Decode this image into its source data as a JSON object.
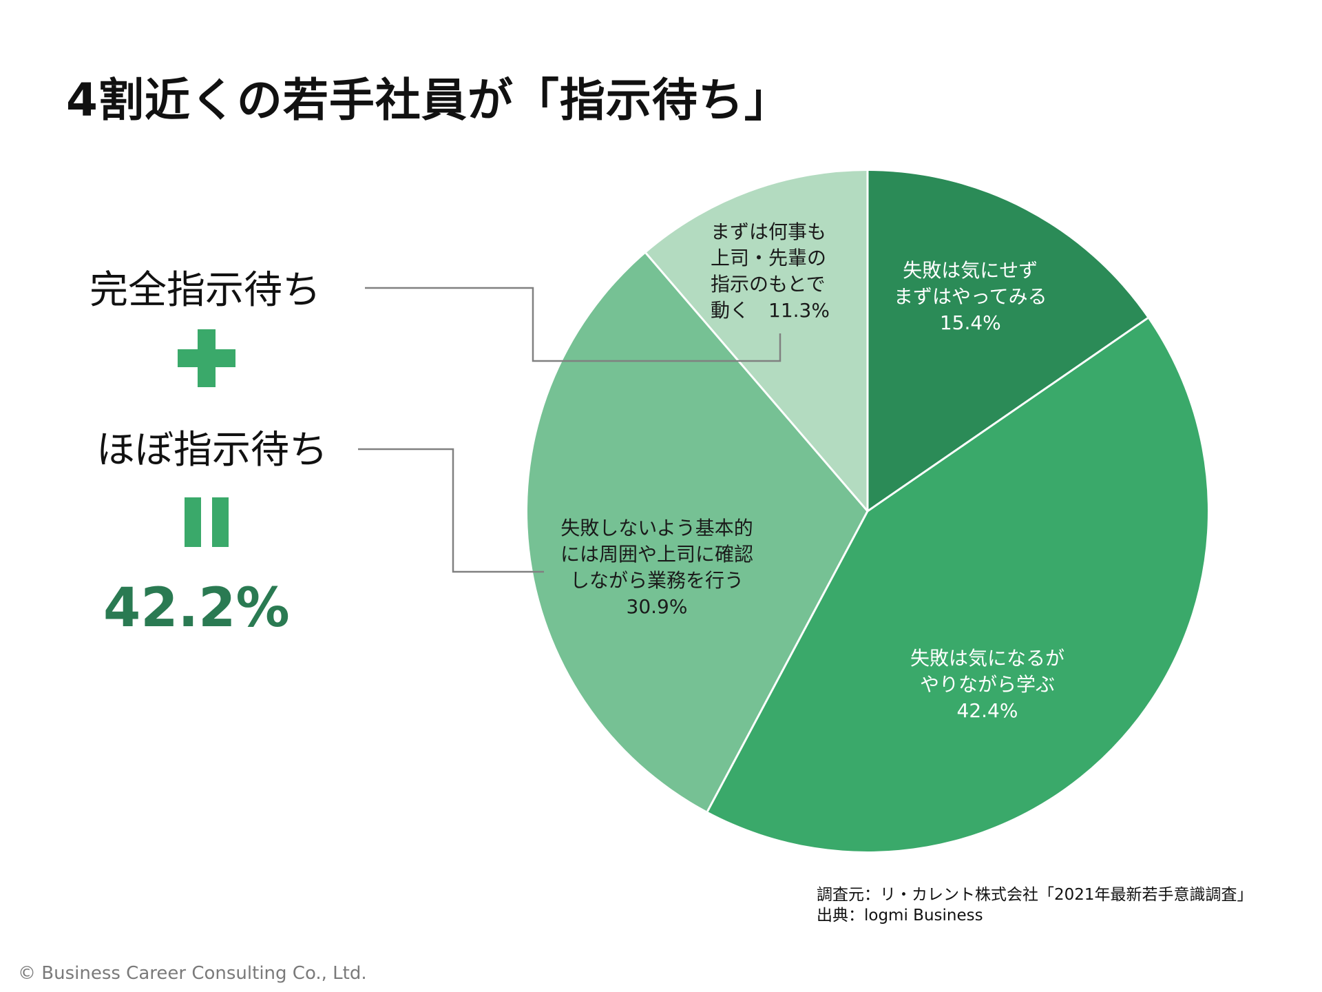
{
  "title": "4割近くの若手社員が「指示待ち」",
  "left_panel": {
    "label_full": "完全指示待ち",
    "label_almost": "ほぼ指示待ち",
    "plus_icon": "plus-icon",
    "equals_icon": "equals-icon",
    "total_percent": "42.2%"
  },
  "colors": {
    "accent": "#3aa96a",
    "total_text": "#2a7a52",
    "leader_line": "#808080"
  },
  "chart_data": {
    "type": "pie",
    "title": "",
    "slices": [
      {
        "lines": [
          "失敗は気にせず",
          "まずはやってみる",
          "15.4%"
        ],
        "value": 15.4,
        "color": "#2b8b57",
        "label_color": "#ffffff"
      },
      {
        "lines": [
          "失敗は気になるが",
          "やりながら学ぶ",
          "42.4%"
        ],
        "value": 42.4,
        "color": "#3aa96a",
        "label_color": "#ffffff"
      },
      {
        "lines": [
          "失敗しないよう基本的",
          "には周囲や上司に確認",
          "しながら業務を行う",
          "30.9%"
        ],
        "value": 30.9,
        "color": "#76c194",
        "label_color": "#1a1a1a"
      },
      {
        "lines": [
          "まずは何事も",
          "上司・先輩の",
          "指示のもとで",
          "動く　11.3%"
        ],
        "value": 11.3,
        "color": "#b3dbc0",
        "label_color": "#1a1a1a"
      }
    ]
  },
  "source": {
    "line1": "調査元：リ・カレント株式会社「2021年最新若手意識調査」",
    "line2": "出典：logmi Business"
  },
  "copyright": "© Business Career Consulting Co., Ltd."
}
